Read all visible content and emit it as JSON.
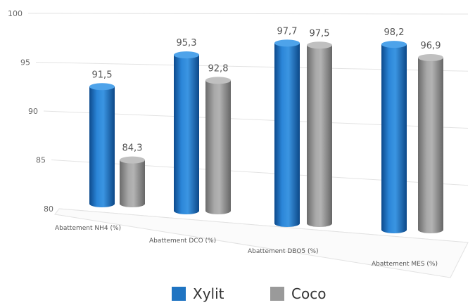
{
  "chart_data": {
    "type": "bar",
    "title": "",
    "xlabel": "",
    "ylabel": "",
    "categories": [
      "Abattement NH4 (%)",
      "Abattement DCO (%)",
      "Abattement DBO5 (%)",
      "Abattement MES (%)"
    ],
    "series": [
      {
        "name": "Xylit",
        "values": [
          "91,5",
          "95,3",
          "97,7",
          "98,2"
        ],
        "color": "#1f74c2"
      },
      {
        "name": "Coco",
        "values": [
          "84,3",
          "92,8",
          "97,5",
          "96,9"
        ],
        "color": "#9a9a9a"
      }
    ],
    "ylim": [
      80,
      100
    ],
    "yticks": [
      "80",
      "85",
      "90",
      "95",
      "100"
    ],
    "grid": true,
    "legend_position": "bottom"
  }
}
